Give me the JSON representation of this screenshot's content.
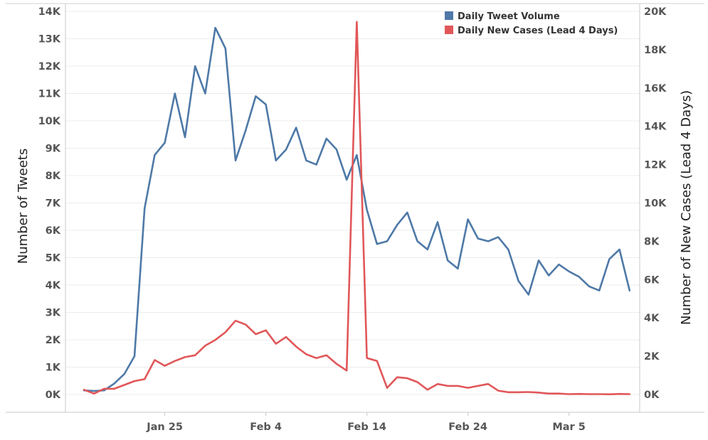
{
  "chart_data": {
    "type": "line",
    "x_tick_labels": [
      "Jan 25",
      "Feb 4",
      "Feb 14",
      "Feb 24",
      "Mar 5"
    ],
    "x_tick_index": [
      8,
      18,
      28,
      38,
      48
    ],
    "x": [
      "Jan 17",
      "Jan 18",
      "Jan 19",
      "Jan 20",
      "Jan 21",
      "Jan 22",
      "Jan 23",
      "Jan 24",
      "Jan 25",
      "Jan 26",
      "Jan 27",
      "Jan 28",
      "Jan 29",
      "Jan 30",
      "Jan 31",
      "Feb 1",
      "Feb 2",
      "Feb 3",
      "Feb 4",
      "Feb 5",
      "Feb 6",
      "Feb 7",
      "Feb 8",
      "Feb 9",
      "Feb 10",
      "Feb 11",
      "Feb 12",
      "Feb 13",
      "Feb 14",
      "Feb 15",
      "Feb 16",
      "Feb 17",
      "Feb 18",
      "Feb 19",
      "Feb 20",
      "Feb 21",
      "Feb 22",
      "Feb 23",
      "Feb 24",
      "Feb 25",
      "Feb 26",
      "Feb 27",
      "Feb 28",
      "Feb 29",
      "Mar 1",
      "Mar 2",
      "Mar 3",
      "Mar 4",
      "Mar 5",
      "Mar 6",
      "Mar 7",
      "Mar 8",
      "Mar 9",
      "Mar 10",
      "Mar 11"
    ],
    "left_axis": {
      "label": "Number of Tweets",
      "ylim": [
        0,
        14000
      ],
      "tick_values": [
        0,
        1000,
        2000,
        3000,
        4000,
        5000,
        6000,
        7000,
        8000,
        9000,
        10000,
        11000,
        12000,
        13000,
        14000
      ],
      "tick_labels": [
        "0K",
        "1K",
        "2K",
        "3K",
        "4K",
        "5K",
        "6K",
        "7K",
        "8K",
        "9K",
        "10K",
        "11K",
        "12K",
        "13K",
        "14K"
      ]
    },
    "right_axis": {
      "label": "Number of New Cases (Lead 4 Days)",
      "ylim": [
        0,
        20000
      ],
      "tick_values": [
        0,
        2000,
        4000,
        6000,
        8000,
        10000,
        12000,
        14000,
        16000,
        18000,
        20000
      ],
      "tick_labels": [
        "0K",
        "2K",
        "4K",
        "6K",
        "8K",
        "10K",
        "12K",
        "14K",
        "16K",
        "18K",
        "20K"
      ]
    },
    "grid": true,
    "legend_position": "top-right",
    "series": [
      {
        "name": "Daily Tweet Volume",
        "axis": "left",
        "color": "#4e79a7",
        "values": [
          150,
          130,
          150,
          400,
          750,
          1400,
          6800,
          8750,
          9200,
          11000,
          9400,
          12000,
          11000,
          13400,
          12650,
          8550,
          9650,
          10900,
          10600,
          8550,
          8950,
          9750,
          8550,
          8400,
          9350,
          8950,
          7850,
          8750,
          6750,
          5500,
          5600,
          6200,
          6650,
          5600,
          5300,
          6300,
          4900,
          4600,
          6400,
          5700,
          5600,
          5750,
          5300,
          4150,
          3650,
          4900,
          4350,
          4750,
          4500,
          4300,
          3950,
          3800,
          4950,
          5300,
          3800
        ]
      },
      {
        "name": "Daily New Cases (Lead 4 Days)",
        "axis": "right",
        "color": "#e15759",
        "values": [
          250,
          50,
          300,
          300,
          500,
          700,
          800,
          1800,
          1500,
          1750,
          1950,
          2050,
          2550,
          2850,
          3250,
          3850,
          3650,
          3150,
          3350,
          2650,
          3000,
          2500,
          2100,
          1900,
          2050,
          1600,
          1250,
          19450,
          1900,
          1750,
          350,
          900,
          850,
          650,
          250,
          550,
          450,
          450,
          350,
          450,
          550,
          200,
          120,
          120,
          130,
          100,
          50,
          50,
          20,
          30,
          20,
          20,
          10,
          30,
          20
        ]
      }
    ]
  }
}
